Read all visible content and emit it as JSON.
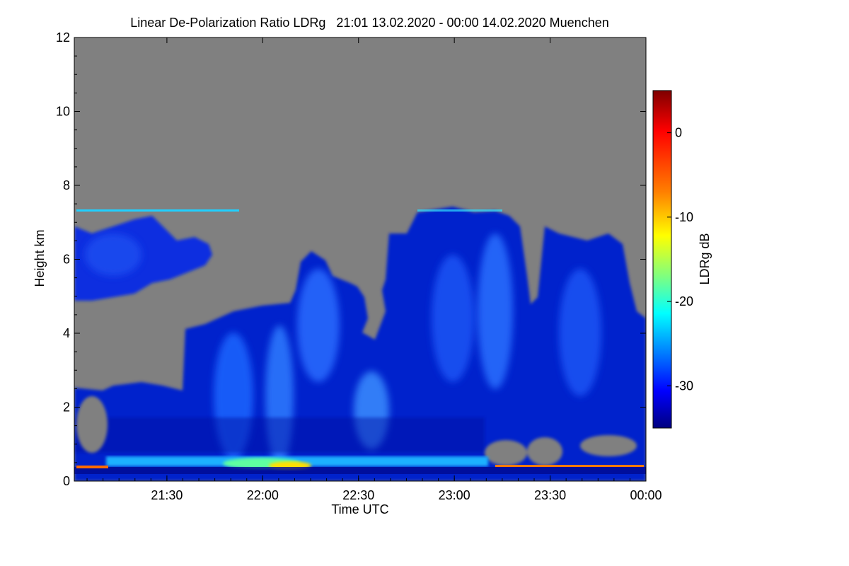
{
  "chart_data": {
    "type": "heatmap",
    "title": "Linear De-Polarization Ratio LDRg   21:01 13.02.2020 - 00:00 14.02.2020 Muenchen",
    "xlabel": "Time UTC",
    "ylabel": "Height km",
    "colorbar_label": "LDRg dB",
    "x_range": [
      "21:01",
      "00:00"
    ],
    "x_ticks": [
      "21:30",
      "22:00",
      "22:30",
      "23:00",
      "23:30",
      "00:00"
    ],
    "x_tick_minutes": [
      29,
      59,
      89,
      119,
      149,
      179
    ],
    "x_minutes_total": 179,
    "ylim": [
      0,
      12
    ],
    "y_ticks": [
      0,
      2,
      4,
      6,
      8,
      10,
      12
    ],
    "colorbar_range": [
      -35,
      5
    ],
    "colorbar_ticks": [
      0,
      -10,
      -20,
      -30
    ],
    "no_data_color": "#808080",
    "colormap": [
      "#00007f",
      "#0000ff",
      "#007fff",
      "#00ffff",
      "#7fff7f",
      "#ffff00",
      "#ff7f00",
      "#ff0000",
      "#7f0000"
    ]
  }
}
